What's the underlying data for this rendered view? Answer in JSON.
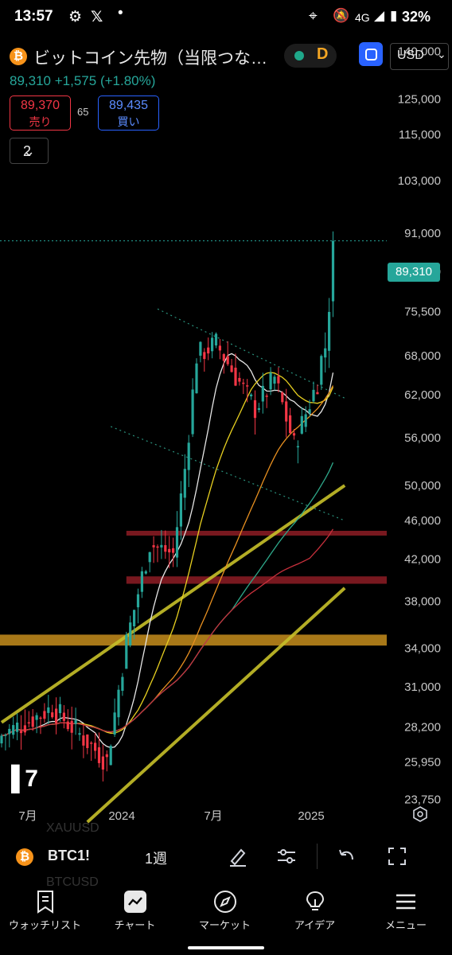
{
  "status_bar": {
    "time": "13:57",
    "network": "4G",
    "battery": "32%"
  },
  "header": {
    "symbol_title": "ビットコイン先物（当限つな…",
    "delay_badge": "D",
    "currency": "USD",
    "last_price": "89,310",
    "change": "+1,575",
    "change_pct": "(+1.80%)",
    "sell_price": "89,370",
    "sell_label": "売り",
    "spread": "65",
    "buy_price": "89,435",
    "buy_label": "買い",
    "indicators_count": "2"
  },
  "colors": {
    "up": "#26a69a",
    "down": "#f23645",
    "accent": "#2962ff",
    "trendline": "#c7c02a",
    "zone_orange": "#e0a020",
    "zone_red": "#a0202a"
  },
  "chart_data": {
    "type": "candlestick",
    "interval": "1週",
    "scale": "log",
    "ylim": [
      22500,
      150000
    ],
    "y_ticks": [
      "140,000",
      "125,000",
      "115,000",
      "103,000",
      "91,000",
      "83,000",
      "75,500",
      "68,000",
      "62,000",
      "56,000",
      "50,000",
      "46,000",
      "42,000",
      "38,000",
      "34,000",
      "31,000",
      "28,200",
      "25,950",
      "23,750"
    ],
    "x_ticks": [
      "7月",
      "2024",
      "7月",
      "2025"
    ],
    "last_price_label": "89,310",
    "price_segments": [
      {
        "weeks": 14,
        "from": 27500,
        "to": 29500
      },
      {
        "weeks": 14,
        "from": 29500,
        "to": 26000
      },
      {
        "weeks": 5,
        "from": 26000,
        "to": 34500
      },
      {
        "weeks": 6,
        "from": 34500,
        "to": 43500
      },
      {
        "weeks": 6,
        "from": 43500,
        "to": 42500
      },
      {
        "weeks": 3,
        "from": 42500,
        "to": 52000
      },
      {
        "weeks": 3,
        "from": 52000,
        "to": 68000
      },
      {
        "weeks": 5,
        "from": 68000,
        "to": 70000
      },
      {
        "weeks": 10,
        "from": 70000,
        "to": 60000
      },
      {
        "weeks": 5,
        "from": 60000,
        "to": 64500
      },
      {
        "weeks": 5,
        "from": 64500,
        "to": 55000
      },
      {
        "weeks": 6,
        "from": 55000,
        "to": 64000
      },
      {
        "weeks": 1,
        "from": 64000,
        "to": 67500
      },
      {
        "weeks": 1,
        "from": 67500,
        "to": 69500
      },
      {
        "weeks": 1,
        "from": 69500,
        "to": 77000
      },
      {
        "weeks": 1,
        "from": 77000,
        "to": 89310
      }
    ],
    "moving_averages": [
      {
        "color": "#e6e6e6",
        "period": 10
      },
      {
        "color": "#e8d020",
        "period": 20
      },
      {
        "color": "#e89020",
        "period": 40
      },
      {
        "color": "#2ea88a",
        "period": 60
      },
      {
        "color": "#c8303c",
        "period": 80
      }
    ],
    "channel_upper": [
      {
        "date_week": 40,
        "price": 76000
      },
      {
        "date_week": 88,
        "price": 61500
      }
    ],
    "channel_lower": [
      {
        "date_week": 28,
        "price": 57500
      },
      {
        "date_week": 88,
        "price": 46000
      }
    ],
    "trendline_1": [
      {
        "date_week": 0,
        "price": 28500
      },
      {
        "date_week": 88,
        "price": 50000
      }
    ],
    "trendline_2": [
      {
        "date_week": 22,
        "price": 22500
      },
      {
        "date_week": 88,
        "price": 39200
      }
    ],
    "zones": [
      {
        "color": "orange",
        "from_price": 34200,
        "to_price": 35100
      },
      {
        "color": "red",
        "from_price": 39600,
        "to_price": 40300
      },
      {
        "color": "red",
        "from_price": 44400,
        "to_price": 44900
      }
    ]
  },
  "toolbar": {
    "symbol": "BTC1!",
    "interval": "1週",
    "ghost_above": "XAUUSD",
    "ghost_below": "BTCUSD"
  },
  "nav": {
    "items": [
      "ウォッチリスト",
      "チャート",
      "マーケット",
      "アイデア",
      "メニュー"
    ]
  }
}
